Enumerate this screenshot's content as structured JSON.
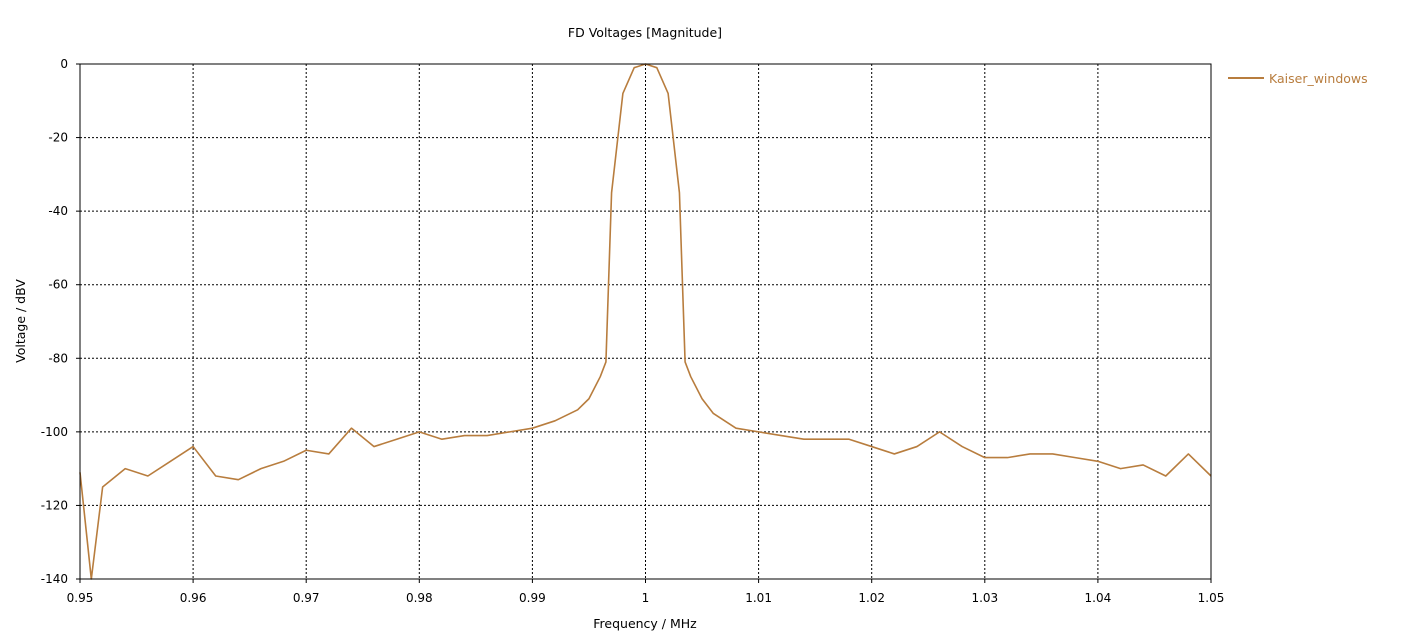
{
  "chart_data": {
    "type": "line",
    "title": "FD Voltages [Magnitude]",
    "xlabel": "Frequency / MHz",
    "ylabel": "Voltage / dBV",
    "xlim": [
      0.95,
      1.05
    ],
    "ylim": [
      -140,
      0
    ],
    "x_ticks": [
      0.95,
      0.96,
      0.97,
      0.98,
      0.99,
      1.0,
      1.01,
      1.02,
      1.03,
      1.04,
      1.05
    ],
    "x_tick_labels": [
      "0.95",
      "0.96",
      "0.97",
      "0.98",
      "0.99",
      "1",
      "1.01",
      "1.02",
      "1.03",
      "1.04",
      "1.05"
    ],
    "y_ticks": [
      0,
      -20,
      -40,
      -60,
      -80,
      -100,
      -120,
      -140
    ],
    "y_tick_labels": [
      "0",
      "-20",
      "-40",
      "-60",
      "-80",
      "-100",
      "-120",
      "-140"
    ],
    "grid": true,
    "legend_position": "right",
    "series": [
      {
        "name": "Kaiser_windows",
        "color": "#B87D3E",
        "x": [
          0.95,
          0.951,
          0.952,
          0.954,
          0.956,
          0.958,
          0.96,
          0.962,
          0.964,
          0.966,
          0.968,
          0.97,
          0.972,
          0.974,
          0.976,
          0.978,
          0.98,
          0.982,
          0.984,
          0.986,
          0.988,
          0.99,
          0.992,
          0.994,
          0.995,
          0.996,
          0.9965,
          0.997,
          0.998,
          0.999,
          1.0,
          1.001,
          1.002,
          1.003,
          1.0035,
          1.004,
          1.005,
          1.006,
          1.008,
          1.01,
          1.012,
          1.014,
          1.016,
          1.018,
          1.02,
          1.022,
          1.024,
          1.026,
          1.028,
          1.03,
          1.032,
          1.034,
          1.036,
          1.038,
          1.04,
          1.042,
          1.044,
          1.046,
          1.048,
          1.05
        ],
        "values": [
          -111,
          -140,
          -115,
          -110,
          -112,
          -108,
          -104,
          -112,
          -113,
          -110,
          -108,
          -105,
          -106,
          -99,
          -104,
          -102,
          -100,
          -102,
          -101,
          -101,
          -100,
          -99,
          -97,
          -94,
          -91,
          -85,
          -81,
          -35,
          -8,
          -1,
          0,
          -1,
          -8,
          -35,
          -81,
          -85,
          -91,
          -95,
          -99,
          -100,
          -101,
          -102,
          -102,
          -102,
          -104,
          -106,
          -104,
          -100,
          -104,
          -107,
          -107,
          -106,
          -106,
          -107,
          -108,
          -110,
          -109,
          -112,
          -106,
          -112
        ]
      }
    ]
  }
}
